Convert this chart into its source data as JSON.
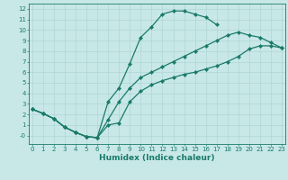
{
  "bg_color": "#c8e8e8",
  "grid_color": "#b0d4d4",
  "line_color": "#1a7a6a",
  "line_width": 0.9,
  "marker": "D",
  "marker_size": 2.2,
  "curve_top_x": [
    0,
    1,
    2,
    3,
    4,
    5,
    6,
    7,
    8,
    9,
    10,
    11,
    12,
    13,
    14,
    15,
    16,
    17,
    18,
    19,
    20,
    21,
    22,
    23
  ],
  "curve_top_y": [
    2.5,
    2.1,
    1.6,
    0.8,
    0.3,
    -0.1,
    -0.2,
    3.2,
    4.5,
    6.8,
    9.3,
    10.3,
    11.5,
    11.8,
    11.8,
    11.5,
    11.2,
    10.5,
    null,
    null,
    null,
    null,
    null,
    null
  ],
  "curve_mid_x": [
    0,
    1,
    2,
    3,
    4,
    5,
    6,
    7,
    8,
    9,
    10,
    11,
    12,
    13,
    14,
    15,
    16,
    17,
    18,
    19,
    20,
    21,
    22,
    23
  ],
  "curve_mid_y": [
    2.5,
    2.1,
    1.6,
    0.8,
    0.3,
    -0.1,
    -0.2,
    1.5,
    3.2,
    4.5,
    5.5,
    6.0,
    6.5,
    7.0,
    7.5,
    8.0,
    8.5,
    9.0,
    9.5,
    9.8,
    9.5,
    9.3,
    8.8,
    8.3
  ],
  "curve_bot_x": [
    0,
    1,
    2,
    3,
    4,
    5,
    6,
    7,
    8,
    9,
    10,
    11,
    12,
    13,
    14,
    15,
    16,
    17,
    18,
    19,
    20,
    21,
    22,
    23
  ],
  "curve_bot_y": [
    2.5,
    2.1,
    1.6,
    0.8,
    0.3,
    -0.1,
    -0.2,
    1.0,
    1.2,
    3.2,
    4.2,
    4.8,
    5.2,
    5.5,
    5.8,
    6.0,
    6.3,
    6.6,
    7.0,
    7.5,
    8.2,
    8.5,
    8.5,
    8.3
  ],
  "xlim": [
    -0.3,
    23.3
  ],
  "ylim": [
    -0.8,
    12.5
  ],
  "xticks": [
    0,
    1,
    2,
    3,
    4,
    5,
    6,
    7,
    8,
    9,
    10,
    11,
    12,
    13,
    14,
    15,
    16,
    17,
    18,
    19,
    20,
    21,
    22,
    23
  ],
  "yticks": [
    0,
    1,
    2,
    3,
    4,
    5,
    6,
    7,
    8,
    9,
    10,
    11,
    12
  ],
  "xlabel": "Humidex (Indice chaleur)",
  "tick_fontsize": 5.0,
  "label_fontsize": 6.5
}
